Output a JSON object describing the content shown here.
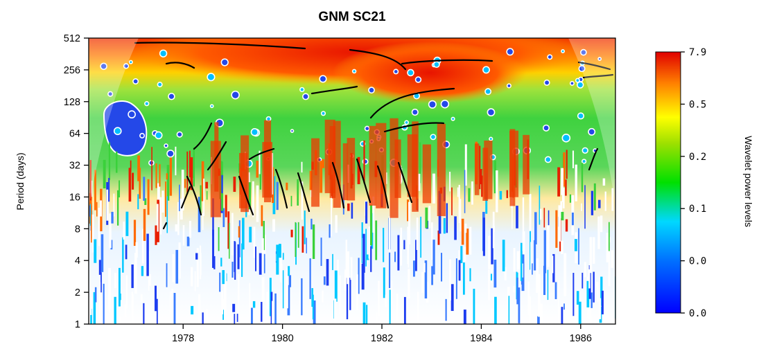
{
  "chart_data": {
    "type": "heatmap",
    "title": "GNM SC21",
    "xlabel": "",
    "ylabel": "Period (days)",
    "x_ticks": [
      "1978",
      "1980",
      "1982",
      "1984",
      "1986"
    ],
    "x_range": [
      1976.1,
      1986.7
    ],
    "y_scale": "log2",
    "y_ticks": [
      "1",
      "2",
      "4",
      "8",
      "16",
      "32",
      "64",
      "128",
      "256",
      "512"
    ],
    "y_range": [
      1,
      512
    ],
    "colorbar": {
      "label": "Wavelet power levels",
      "tick_labels": [
        "0.0",
        "0.0",
        "0.1",
        "0.2",
        "0.5",
        "7.9"
      ],
      "colors": [
        "#0000ff",
        "#00d8ff",
        "#00e000",
        "#ffff00",
        "#ff8000",
        "#e00000"
      ]
    },
    "bands": [
      {
        "from_period": 1,
        "to_period": 8,
        "level": "low (blue/white)"
      },
      {
        "from_period": 8,
        "to_period": 32,
        "level": "mixed red/white"
      },
      {
        "from_period": 32,
        "to_period": 128,
        "level": "green with red columns"
      },
      {
        "from_period": 128,
        "to_period": 512,
        "level": "high (yellow/red)"
      }
    ]
  }
}
